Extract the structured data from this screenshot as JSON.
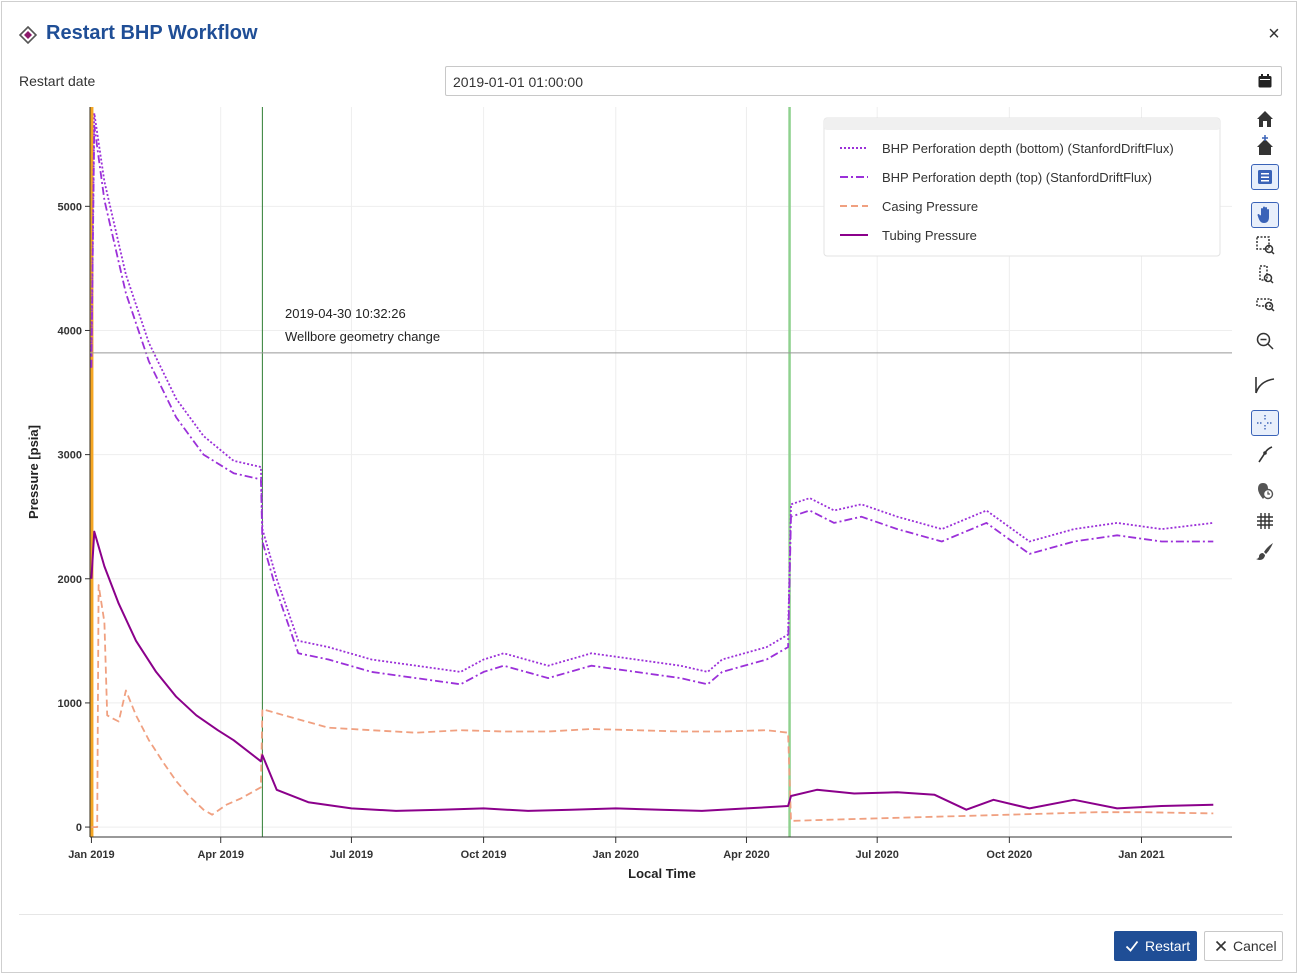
{
  "dialog": {
    "title": "Restart BHP Workflow",
    "close_label": "×"
  },
  "restart_date": {
    "label": "Restart date",
    "value": "2019-01-01 01:00:00"
  },
  "chart": {
    "annotation_time": "2019-04-30 10:32:26",
    "annotation_text": "Wellbore geometry change"
  },
  "chart_data": {
    "type": "line",
    "xlabel": "Local Time",
    "ylabel": "Pressure [psia]",
    "x_ticks": [
      "Jan 2019",
      "Apr 2019",
      "Jul 2019",
      "Oct 2019",
      "Jan 2020",
      "Apr 2020",
      "Jul 2020",
      "Oct 2020",
      "Jan 2021"
    ],
    "y_ticks": [
      "0",
      "1000",
      "2000",
      "3000",
      "4000",
      "5000"
    ],
    "xlim": [
      "2018-12-31",
      "2021-03-05"
    ],
    "ylim": [
      -80,
      5800
    ],
    "grid": true,
    "legend_position": "top-right",
    "events": [
      {
        "date": "2019-01-01",
        "color": "#f5a623"
      },
      {
        "date": "2019-04-30",
        "color": "#2e7d32"
      },
      {
        "date": "2020-05-01",
        "color": "#8fd18f"
      }
    ],
    "crosshair_y": 3820,
    "series": [
      {
        "name": "BHP Perforation depth (bottom) (StanfordDriftFlux)",
        "color": "#9b30d9",
        "style": "dotted",
        "x": [
          "2019-01-01",
          "2019-01-03",
          "2019-01-10",
          "2019-01-25",
          "2019-02-10",
          "2019-03-01",
          "2019-03-20",
          "2019-04-10",
          "2019-04-29",
          "2019-04-30",
          "2019-05-10",
          "2019-05-25",
          "2019-06-15",
          "2019-07-15",
          "2019-08-15",
          "2019-09-15",
          "2019-10-01",
          "2019-10-15",
          "2019-11-15",
          "2019-12-15",
          "2020-01-15",
          "2020-02-15",
          "2020-03-05",
          "2020-03-15",
          "2020-04-15",
          "2020-04-30",
          "2020-05-02",
          "2020-05-15",
          "2020-06-01",
          "2020-06-20",
          "2020-07-15",
          "2020-08-15",
          "2020-09-15",
          "2020-10-15",
          "2020-11-15",
          "2020-12-15",
          "2021-01-15",
          "2021-02-20"
        ],
        "y": [
          3800,
          5750,
          5200,
          4450,
          3900,
          3450,
          3150,
          2950,
          2900,
          2400,
          2000,
          1500,
          1450,
          1350,
          1300,
          1250,
          1350,
          1400,
          1300,
          1400,
          1350,
          1300,
          1250,
          1350,
          1450,
          1550,
          2600,
          2650,
          2550,
          2600,
          2500,
          2400,
          2550,
          2300,
          2400,
          2450,
          2400,
          2450
        ]
      },
      {
        "name": "BHP Perforation depth (top) (StanfordDriftFlux)",
        "color": "#9b30d9",
        "style": "dashdot",
        "x": [
          "2019-01-01",
          "2019-01-03",
          "2019-01-10",
          "2019-01-25",
          "2019-02-10",
          "2019-03-01",
          "2019-03-20",
          "2019-04-10",
          "2019-04-29",
          "2019-04-30",
          "2019-05-10",
          "2019-05-25",
          "2019-06-15",
          "2019-07-15",
          "2019-08-15",
          "2019-09-15",
          "2019-10-01",
          "2019-10-15",
          "2019-11-15",
          "2019-12-15",
          "2020-01-15",
          "2020-02-15",
          "2020-03-05",
          "2020-03-15",
          "2020-04-15",
          "2020-04-30",
          "2020-05-02",
          "2020-05-15",
          "2020-06-01",
          "2020-06-20",
          "2020-07-15",
          "2020-08-15",
          "2020-09-15",
          "2020-10-15",
          "2020-11-15",
          "2020-12-15",
          "2021-01-15",
          "2021-02-20"
        ],
        "y": [
          3700,
          5650,
          5050,
          4300,
          3750,
          3300,
          3000,
          2850,
          2800,
          2300,
          1900,
          1400,
          1350,
          1250,
          1200,
          1150,
          1250,
          1300,
          1200,
          1300,
          1250,
          1200,
          1150,
          1250,
          1350,
          1450,
          2500,
          2550,
          2450,
          2500,
          2400,
          2300,
          2450,
          2200,
          2300,
          2350,
          2300,
          2300
        ]
      },
      {
        "name": "Casing Pressure",
        "color": "#f0a080",
        "style": "dashed",
        "x": [
          "2019-01-01",
          "2019-01-05",
          "2019-01-06",
          "2019-01-10",
          "2019-01-12",
          "2019-01-15",
          "2019-01-20",
          "2019-01-25",
          "2019-02-01",
          "2019-02-10",
          "2019-02-20",
          "2019-03-01",
          "2019-03-10",
          "2019-03-20",
          "2019-03-26",
          "2019-04-05",
          "2019-04-15",
          "2019-04-29",
          "2019-04-30",
          "2019-05-15",
          "2019-06-15",
          "2019-07-15",
          "2019-08-15",
          "2019-09-15",
          "2019-10-15",
          "2019-11-15",
          "2019-12-15",
          "2020-01-15",
          "2020-02-15",
          "2020-03-15",
          "2020-04-15",
          "2020-04-30",
          "2020-05-02",
          "2020-06-01",
          "2020-07-01",
          "2020-08-01",
          "2020-09-01",
          "2020-10-01",
          "2020-11-01",
          "2020-12-01",
          "2021-01-01",
          "2021-02-20"
        ],
        "y": [
          0,
          0,
          1950,
          1650,
          900,
          880,
          850,
          1100,
          900,
          700,
          520,
          370,
          250,
          140,
          100,
          180,
          230,
          320,
          950,
          900,
          800,
          780,
          760,
          780,
          770,
          770,
          790,
          780,
          770,
          770,
          780,
          760,
          50,
          60,
          70,
          80,
          90,
          100,
          110,
          120,
          120,
          110
        ]
      },
      {
        "name": "Tubing Pressure",
        "color": "#8b008b",
        "style": "solid",
        "x": [
          "2019-01-01",
          "2019-01-03",
          "2019-01-10",
          "2019-01-20",
          "2019-02-01",
          "2019-02-15",
          "2019-03-01",
          "2019-03-15",
          "2019-03-30",
          "2019-04-10",
          "2019-04-29",
          "2019-04-30",
          "2019-05-10",
          "2019-06-01",
          "2019-07-01",
          "2019-08-01",
          "2019-09-01",
          "2019-10-01",
          "2019-11-01",
          "2019-12-01",
          "2020-01-01",
          "2020-02-01",
          "2020-03-01",
          "2020-04-01",
          "2020-04-30",
          "2020-05-02",
          "2020-05-20",
          "2020-06-15",
          "2020-07-15",
          "2020-08-10",
          "2020-09-01",
          "2020-09-20",
          "2020-10-15",
          "2020-11-15",
          "2020-12-15",
          "2021-01-15",
          "2021-02-20"
        ],
        "y": [
          2000,
          2380,
          2100,
          1800,
          1500,
          1250,
          1050,
          900,
          780,
          700,
          530,
          580,
          300,
          200,
          150,
          130,
          140,
          150,
          130,
          140,
          150,
          140,
          130,
          150,
          170,
          250,
          300,
          270,
          280,
          260,
          140,
          220,
          150,
          220,
          150,
          170,
          180
        ]
      }
    ]
  },
  "toolbar": {
    "tools": [
      "home-icon",
      "reset-home-icon",
      "legend-toggle-icon",
      "pan-icon",
      "box-zoom-icon",
      "y-zoom-icon",
      "x-zoom-icon",
      "zoom-out-icon",
      "curve-icon",
      "crosshair-icon",
      "line-select-icon",
      "hover-icon",
      "grid-icon",
      "brush-icon"
    ]
  },
  "footer": {
    "restart_label": "Restart",
    "cancel_label": "Cancel"
  }
}
